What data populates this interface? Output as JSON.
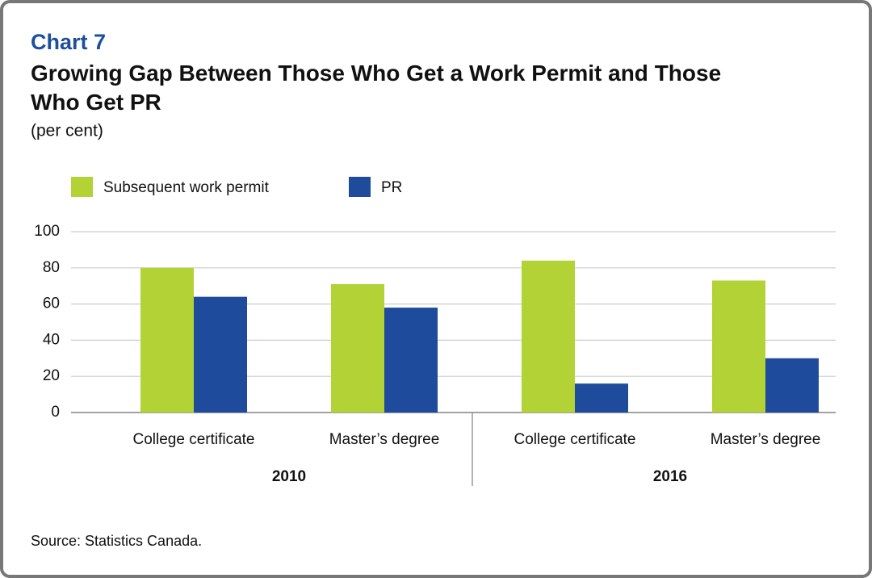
{
  "chart_data": {
    "type": "bar",
    "chart_label": "Chart 7",
    "title": "Growing Gap Between Those Who Get a Work Permit and Those Who Get PR",
    "subtitle": "(per cent)",
    "source": "Source: Statistics Canada.",
    "categories": [
      "College certificate",
      "Master’s degree",
      "College certificate",
      "Master’s degree"
    ],
    "groups": [
      "2010",
      "2016"
    ],
    "series": [
      {
        "name": "Subsequent work permit",
        "color": "#b2d235",
        "values": [
          80,
          71,
          84,
          73
        ]
      },
      {
        "name": "PR",
        "color": "#1e4b9b",
        "values": [
          64,
          58,
          16,
          30
        ]
      }
    ],
    "ylim": [
      0,
      100
    ],
    "yticks": [
      0,
      20,
      40,
      60,
      80,
      100
    ],
    "grid": true
  }
}
